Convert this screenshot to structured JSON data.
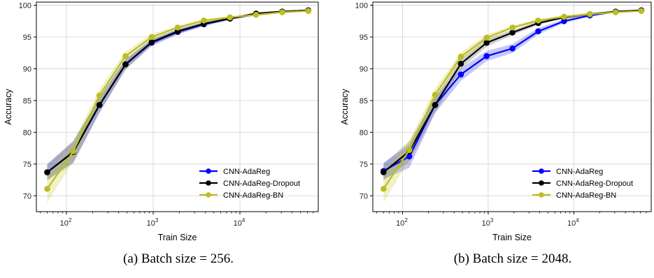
{
  "chart_data": [
    {
      "type": "line",
      "caption": "(a) Batch size = 256.",
      "xlabel": "Train Size",
      "ylabel": "Accuracy",
      "xscale": "log",
      "xlim": [
        45,
        80000
      ],
      "ylim": [
        67.5,
        100.5
      ],
      "xticks": [
        {
          "value": 100,
          "base": "10",
          "exp": "2"
        },
        {
          "value": 1000,
          "base": "10",
          "exp": "3"
        },
        {
          "value": 10000,
          "base": "10",
          "exp": "4"
        }
      ],
      "yticks": [
        70,
        75,
        80,
        85,
        90,
        95,
        100
      ],
      "grid": true,
      "legend_position": "lower-right",
      "x": [
        60,
        120,
        240,
        480,
        960,
        1920,
        3840,
        7680,
        15360,
        30720,
        61440
      ],
      "series": [
        {
          "name": "CNN-AdaReg",
          "color": "#0000ff",
          "band_color": "#2b3cd8",
          "values": [
            73.7,
            76.9,
            84.3,
            90.7,
            94.1,
            95.8,
            97.0,
            97.9,
            98.6,
            99.0,
            99.2
          ],
          "band": [
            1.2,
            1.6,
            1.2,
            0.8,
            0.5,
            0.4,
            0.3,
            0.2,
            0.2,
            0.15,
            0.1
          ]
        },
        {
          "name": "CNN-AdaReg-Dropout",
          "color": "#000000",
          "band_color": "#555555",
          "values": [
            73.7,
            76.9,
            84.3,
            90.7,
            94.2,
            95.9,
            97.1,
            97.9,
            98.7,
            99.0,
            99.2
          ],
          "band": [
            1.3,
            1.8,
            1.2,
            0.8,
            0.5,
            0.4,
            0.3,
            0.2,
            0.2,
            0.15,
            0.1
          ]
        },
        {
          "name": "CNN-AdaReg-BN",
          "color": "#bcbd22",
          "band_color": "#c8cc2a",
          "values": [
            71.1,
            77.0,
            85.8,
            92.0,
            95.0,
            96.5,
            97.6,
            98.1,
            98.5,
            98.9,
            99.1
          ],
          "band": [
            2.2,
            1.5,
            1.0,
            0.7,
            0.5,
            0.3,
            0.25,
            0.2,
            0.2,
            0.15,
            0.1
          ]
        }
      ]
    },
    {
      "type": "line",
      "caption": "(b) Batch size = 2048.",
      "xlabel": "Train Size",
      "ylabel": "Accuracy",
      "xscale": "log",
      "xlim": [
        45,
        80000
      ],
      "ylim": [
        67.5,
        100.5
      ],
      "xticks": [
        {
          "value": 100,
          "base": "10",
          "exp": "2"
        },
        {
          "value": 1000,
          "base": "10",
          "exp": "3"
        },
        {
          "value": 10000,
          "base": "10",
          "exp": "4"
        }
      ],
      "yticks": [
        70,
        75,
        80,
        85,
        90,
        95,
        100
      ],
      "grid": true,
      "legend_position": "lower-right",
      "x": [
        60,
        120,
        240,
        480,
        960,
        1920,
        3840,
        7680,
        15360,
        30720,
        61440
      ],
      "series": [
        {
          "name": "CNN-AdaReg",
          "color": "#0000ff",
          "band_color": "#2b3cd8",
          "values": [
            73.9,
            76.2,
            84.3,
            89.1,
            92.0,
            93.2,
            95.9,
            97.5,
            98.4,
            99.0,
            99.2
          ],
          "band": [
            1.3,
            1.8,
            1.3,
            1.0,
            0.8,
            0.7,
            0.5,
            0.3,
            0.2,
            0.15,
            0.1
          ]
        },
        {
          "name": "CNN-AdaReg-Dropout",
          "color": "#000000",
          "band_color": "#555555",
          "values": [
            73.7,
            77.0,
            84.3,
            90.8,
            94.1,
            95.7,
            97.2,
            98.1,
            98.6,
            99.0,
            99.2
          ],
          "band": [
            1.3,
            1.6,
            1.2,
            0.8,
            0.6,
            0.4,
            0.3,
            0.2,
            0.2,
            0.15,
            0.1
          ]
        },
        {
          "name": "CNN-AdaReg-BN",
          "color": "#bcbd22",
          "band_color": "#c8cc2a",
          "values": [
            71.1,
            77.2,
            85.9,
            91.9,
            94.9,
            96.5,
            97.6,
            98.2,
            98.6,
            98.9,
            99.1
          ],
          "band": [
            2.2,
            1.5,
            1.0,
            0.7,
            0.5,
            0.3,
            0.25,
            0.2,
            0.2,
            0.15,
            0.1
          ]
        }
      ]
    }
  ]
}
